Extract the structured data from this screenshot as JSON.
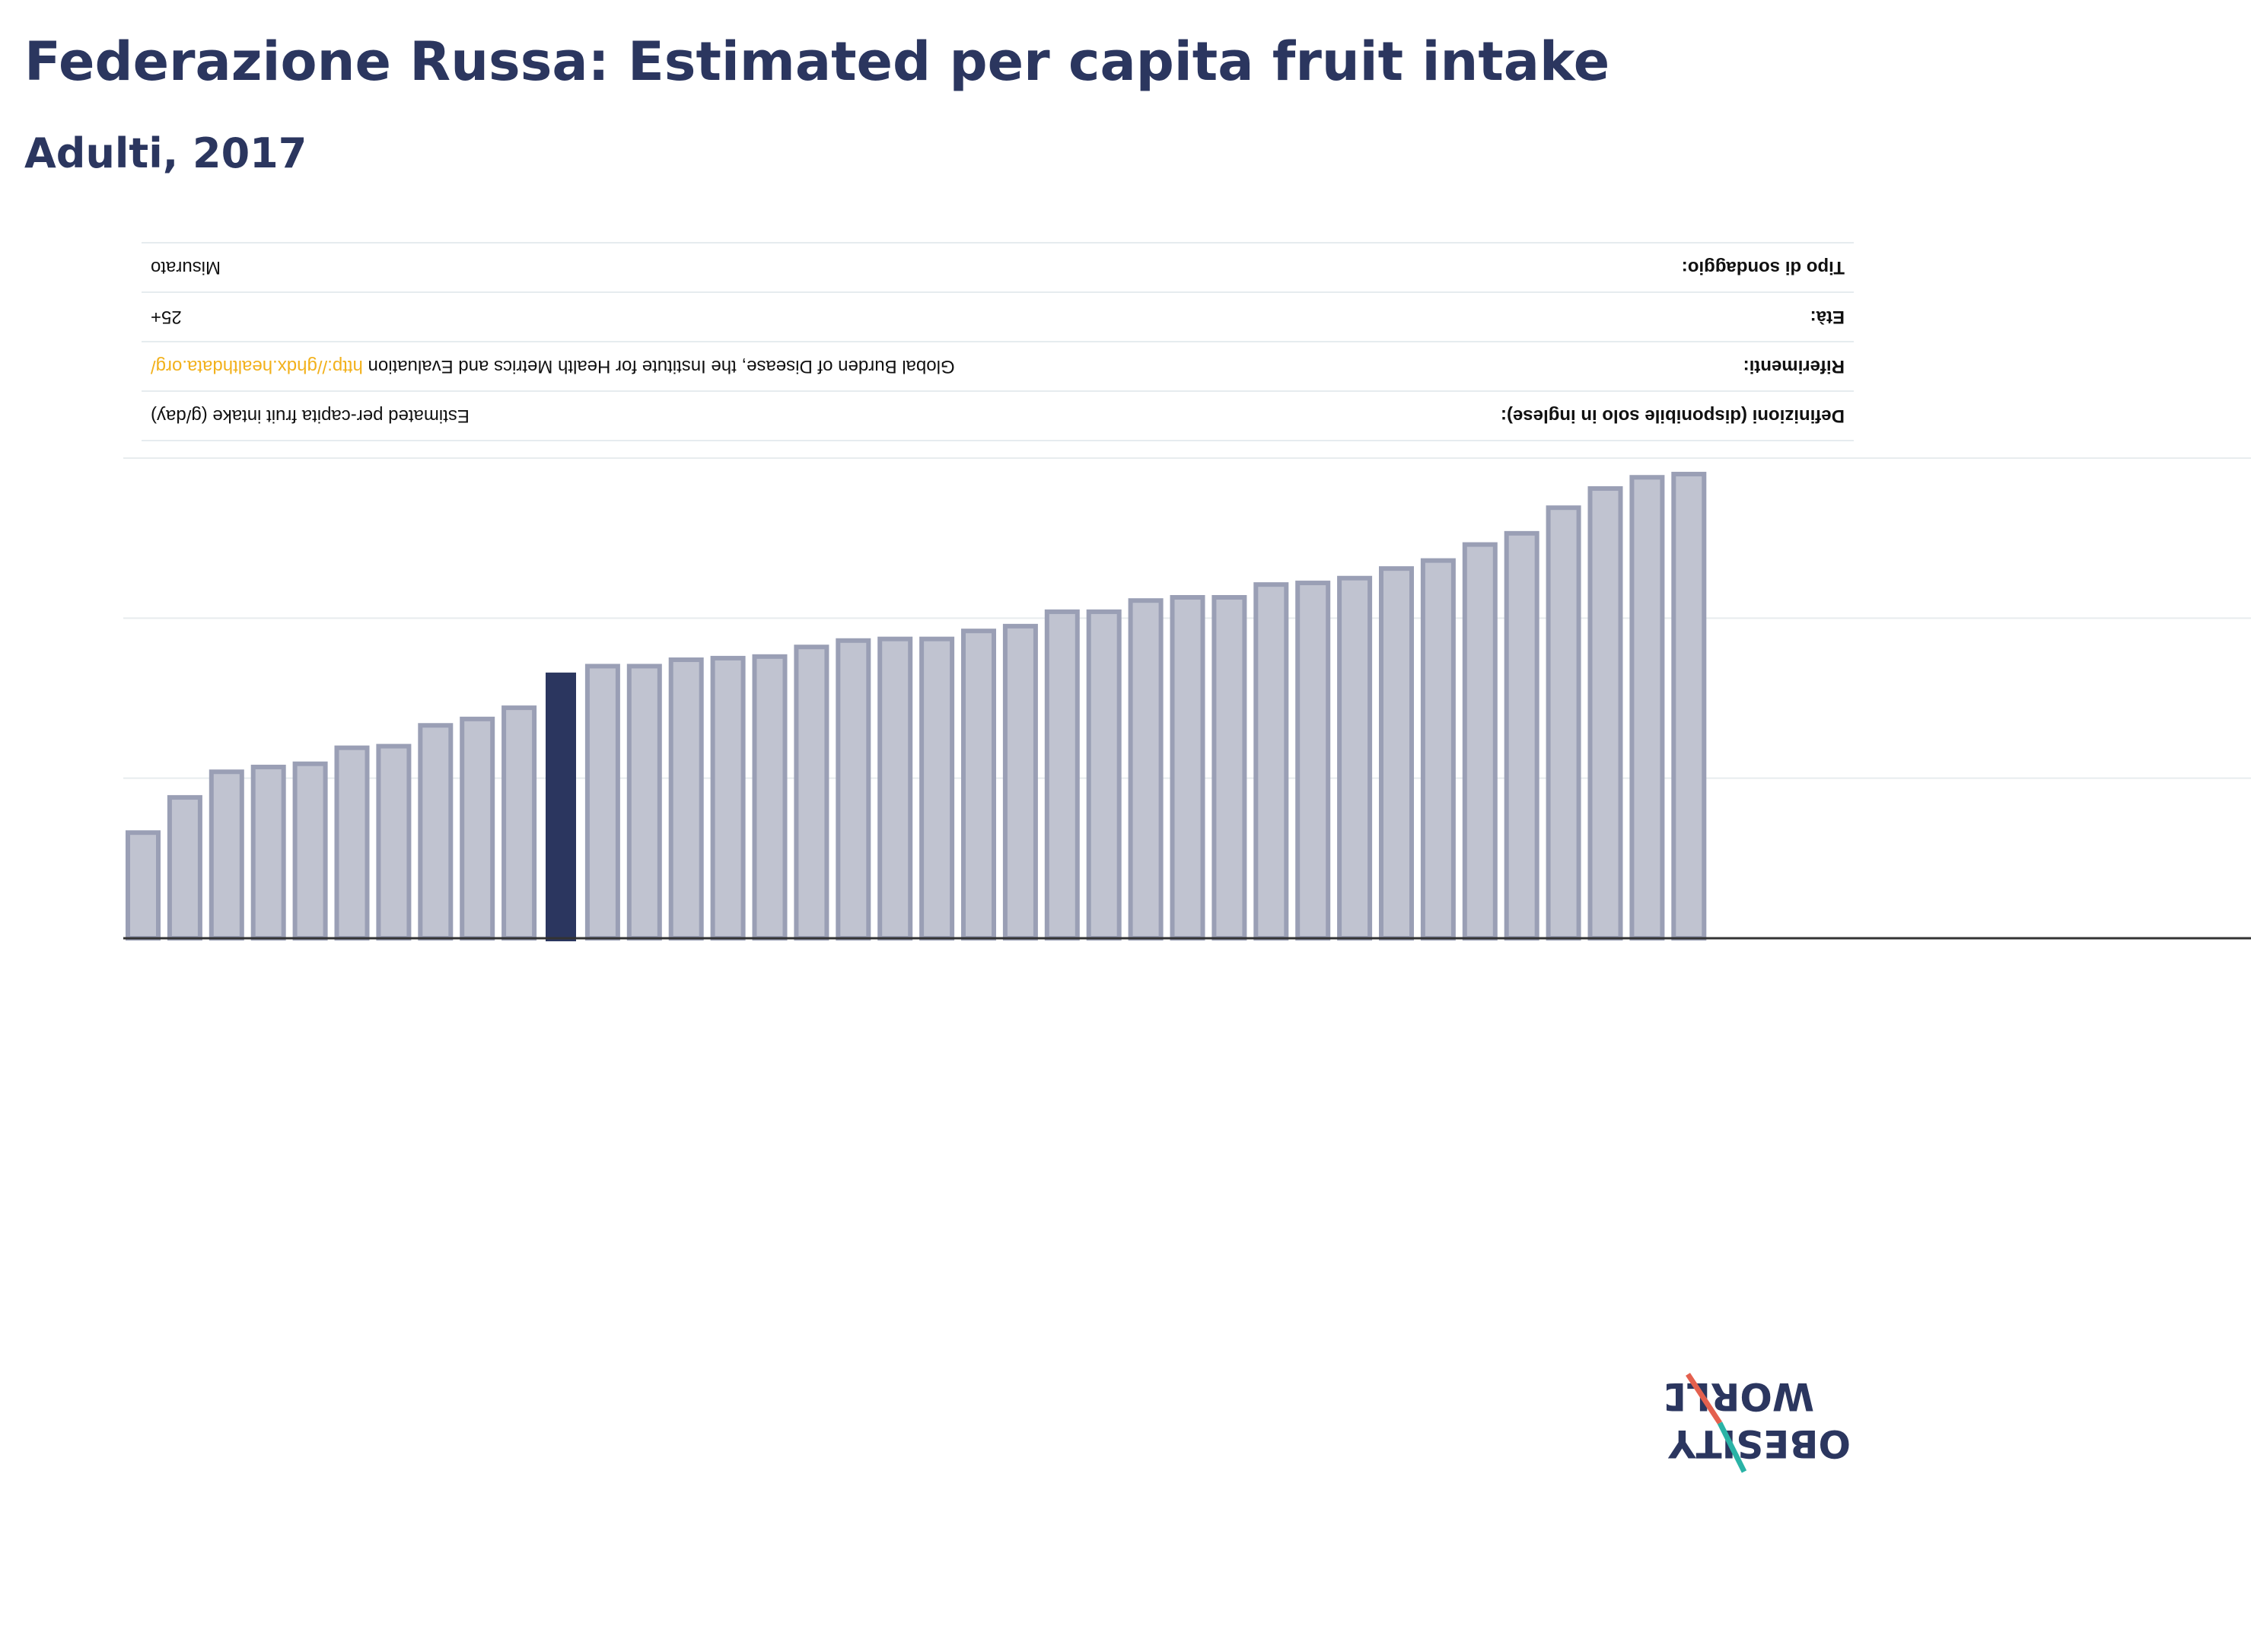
{
  "header": {
    "title": "Federazione Russa: Estimated per capita fruit intake",
    "subtitle": "Adulti, 2017"
  },
  "info_table": {
    "rows": [
      {
        "label": "Definizioni (disponibile solo in inglese):",
        "value": "Estimated per-capita fruit intake (g/day)",
        "link": ""
      },
      {
        "label": "Riferimenti:",
        "value": "Global Burden of Disease, the Institute for Health Metrics and Evaluation ",
        "link": "http://ghdx.healthdata.org/"
      },
      {
        "label": "Età:",
        "value": "25+",
        "link": ""
      },
      {
        "label": "Tipo di sondaggio:",
        "value": "Misurato",
        "link": ""
      }
    ]
  },
  "logo": {
    "line1": "OBESITY",
    "line2": "WORLD"
  },
  "colors": {
    "highlight_bar": "#2b365f",
    "other_bar_fill": "#c0c3d0",
    "other_bar_stroke": "#9a9fb5",
    "gridline": "#e8ecee",
    "axis": "#333333",
    "link": "#f2b11c",
    "logo_red": "#e4604e",
    "logo_teal": "#2ab3a6"
  },
  "chart_data": {
    "type": "bar",
    "title": "Federazione Russa: Estimated per capita fruit intake",
    "subtitle": "Adulti, 2017",
    "xlabel": "",
    "ylabel": "",
    "orientation": "inverted",
    "grid": true,
    "ylim": [
      0,
      150
    ],
    "highlight_index": 10,
    "values": [
      33,
      44,
      52,
      53.5,
      54.5,
      59.5,
      60,
      66.5,
      68.5,
      72,
      83,
      85,
      85,
      87,
      87.5,
      88,
      91,
      93,
      93.5,
      93.5,
      96,
      97.5,
      102,
      102,
      105.5,
      106.5,
      106.5,
      110.5,
      111,
      112.5,
      115.5,
      118,
      123,
      126.5,
      134.5,
      140.5,
      144,
      145
    ]
  }
}
